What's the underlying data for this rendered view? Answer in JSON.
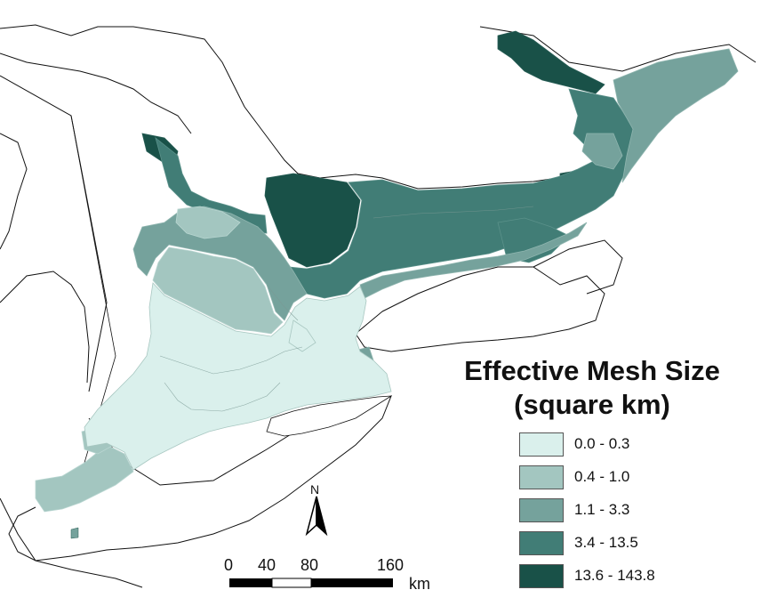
{
  "legend": {
    "title_line1": "Effective Mesh Size",
    "title_line2": "(square km)",
    "classes": [
      {
        "label": "0.0 - 0.3",
        "color": "#daf0ec"
      },
      {
        "label": "0.4 - 1.0",
        "color": "#a3c6c0"
      },
      {
        "label": "1.1 - 3.3",
        "color": "#75a29c"
      },
      {
        "label": "3.4 - 13.5",
        "color": "#417d76"
      },
      {
        "label": "13.6 - 143.8",
        "color": "#195148"
      }
    ]
  },
  "scale_bar": {
    "ticks": [
      "0",
      "40",
      "80",
      "160"
    ],
    "unit": "km"
  },
  "north_arrow": {
    "label": "N",
    "icon": "north-arrow-icon"
  }
}
